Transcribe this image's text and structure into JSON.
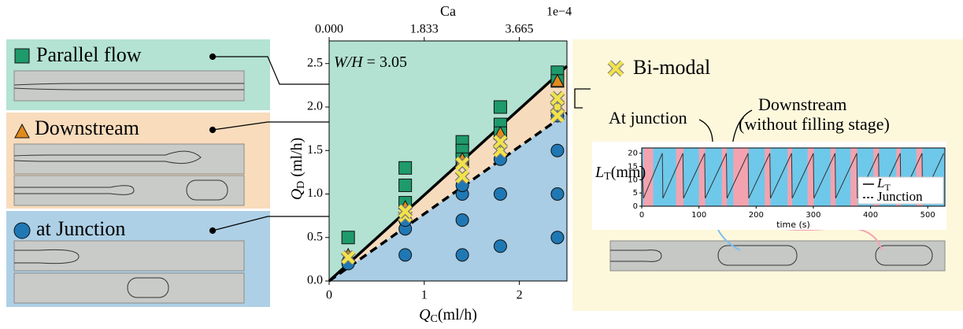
{
  "panels": {
    "parallel": "Parallel flow",
    "downstream": "Downstream",
    "junction": "at Junction",
    "bimodal": "Bi-modal",
    "at_junction": "At junction",
    "downstream_right": "Downstream",
    "downstream_note": "(without filling stage)"
  },
  "chart_data": [
    {
      "type": "scatter",
      "annotation": {
        "italic": "W/H",
        "rest": " = 3.05"
      },
      "xlabel": {
        "main": "Q",
        "sub": "C",
        "unit": "(ml/h)"
      },
      "ylabel": {
        "main": "Q",
        "sub": "D",
        "unit": " (ml/h)"
      },
      "x2label": "Ca",
      "x2offset": "1e−4",
      "xlim": [
        0,
        2.5
      ],
      "xticks": [
        0,
        1,
        2
      ],
      "ylim": [
        0,
        2.76
      ],
      "yticks": [
        {
          "value": 0,
          "label": "0.0"
        },
        {
          "value": 0.5,
          "label": "0.5"
        },
        {
          "value": 1,
          "label": "1.0"
        },
        {
          "value": 1.5,
          "label": "1.5"
        },
        {
          "value": 2,
          "label": "2.0"
        },
        {
          "value": 2.5,
          "label": "2.5"
        }
      ],
      "x2lim": [
        0,
        4.5825
      ],
      "x2ticks": [
        {
          "value": 0,
          "label": "0.000"
        },
        {
          "value": 1.833,
          "label": "1.833"
        },
        {
          "value": 3.665,
          "label": "3.665"
        }
      ],
      "region_colors": {
        "above": "#b3e2d2",
        "between": "#f6dcbd",
        "below": "#a9cde5"
      },
      "lines": [
        {
          "style": "solid",
          "color": "#000000",
          "x": [
            0,
            2.5
          ],
          "values": [
            0,
            2.47
          ]
        },
        {
          "style": "dashed",
          "color": "#000000",
          "x": [
            0,
            2.5
          ],
          "values": [
            0,
            1.93
          ]
        }
      ],
      "series": [
        {
          "marker": "circle",
          "color": "#1f78b4",
          "x": [
            0.2,
            0.8,
            0.8,
            0.8,
            1.4,
            1.4,
            1.4,
            1.4,
            1.8,
            1.8,
            1.8,
            2.4,
            2.4,
            2.4,
            2.4
          ],
          "values": [
            0.2,
            0.3,
            0.6,
            0.7,
            0.3,
            0.7,
            1.0,
            1.1,
            0.4,
            1.0,
            1.4,
            0.5,
            1.0,
            1.5,
            1.9
          ]
        },
        {
          "marker": "square",
          "color": "#1e9a6b",
          "x": [
            0.2,
            0.8,
            0.8,
            0.8,
            1.4,
            1.4,
            1.4,
            1.8,
            1.8,
            1.8,
            2.4,
            2.4
          ],
          "values": [
            0.5,
            1.3,
            1.1,
            0.9,
            1.6,
            1.5,
            1.4,
            2.0,
            1.8,
            1.7,
            2.4,
            2.3
          ]
        },
        {
          "marker": "triangle",
          "color": "#e08a1e",
          "x": [
            0.2,
            0.8,
            1.4,
            1.8,
            2.4
          ],
          "values": [
            0.3,
            0.85,
            1.4,
            1.7,
            2.3
          ]
        },
        {
          "marker": "cross",
          "color": "#f2e24a",
          "x": [
            0.2,
            0.8,
            0.8,
            1.4,
            1.4,
            1.8,
            1.8,
            2.4,
            2.4,
            2.4
          ],
          "values": [
            0.27,
            0.75,
            0.8,
            1.2,
            1.35,
            1.5,
            1.6,
            2.0,
            2.1,
            1.9
          ]
        }
      ]
    },
    {
      "type": "line",
      "xlabel": "time (s)",
      "ylabel": {
        "main": "L",
        "sub": "T",
        "unit": "(mm)"
      },
      "xlim": [
        0,
        530
      ],
      "xticks": [
        0,
        100,
        200,
        300,
        400,
        500
      ],
      "ylim": [
        0,
        22
      ],
      "yticks": [
        0,
        5,
        10,
        15,
        20
      ],
      "background": "#6ec8ea",
      "band_color": "#f3a3b0",
      "bands": [
        [
          3,
          20
        ],
        [
          60,
          73
        ],
        [
          100,
          111
        ],
        [
          140,
          149
        ],
        [
          160,
          187
        ],
        [
          215,
          225
        ],
        [
          255,
          263
        ],
        [
          290,
          301
        ],
        [
          330,
          339
        ],
        [
          365,
          377
        ],
        [
          405,
          415
        ],
        [
          445,
          453
        ],
        [
          480,
          491
        ]
      ],
      "series": [
        {
          "name": {
            "main": "L",
            "sub": "T"
          },
          "color": "#333333",
          "x": [
            0,
            3,
            36,
            37,
            72,
            73,
            110,
            111,
            148,
            149,
            186,
            187,
            224,
            225,
            262,
            263,
            300,
            301,
            338,
            339,
            376,
            377,
            414,
            415,
            452,
            453,
            490,
            491,
            528
          ],
          "values": [
            18,
            3,
            20,
            3,
            20,
            3,
            20,
            3,
            20,
            3,
            20,
            3,
            20,
            3,
            20,
            3,
            20,
            3,
            20,
            3,
            20,
            3,
            20,
            3,
            20,
            3,
            20,
            3,
            20
          ]
        }
      ],
      "legend_extra": "Junction"
    }
  ]
}
